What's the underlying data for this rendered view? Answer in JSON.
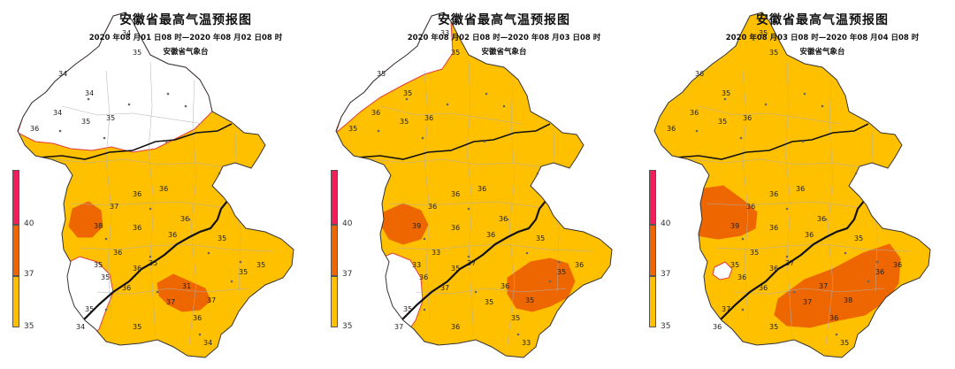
{
  "colors": {
    "band_35_37": "#FFC000",
    "band_37_40": "#EE6600",
    "band_40_plus": "#F01E5A",
    "below_35": "#FFFFFF",
    "boundary": "#333333",
    "river": "#111111",
    "contour_35": "#E03C3C"
  },
  "panels": [
    {
      "title": "安徽省最高气温预报图",
      "date": "2020 年08 月01 日08 时—2020 年08 月02 日08 时",
      "agency": "安徽省气象台",
      "legend": {
        "top": "40",
        "mid": "37",
        "bottom": "35"
      },
      "values": [
        "34",
        "35",
        "34",
        "34",
        "34",
        "35",
        "35",
        "36",
        "38",
        "36",
        "37",
        "36",
        "36",
        "36",
        "36",
        "35",
        "35",
        "36",
        "36",
        "35",
        "31",
        "37",
        "37",
        "36",
        "35",
        "35",
        "34",
        "36",
        "35",
        "35",
        "35",
        "34"
      ]
    },
    {
      "title": "安徽省最高气温预报图",
      "date": "2020 年08 月02 日08 时—2020 年08 月03 日08 时",
      "agency": "安徽省气象台",
      "legend": {
        "top": "40",
        "mid": "37",
        "bottom": "35"
      },
      "values": [
        "33",
        "35",
        "35",
        "35",
        "36",
        "35",
        "36",
        "35",
        "39",
        "36",
        "36",
        "36",
        "36",
        "36",
        "33",
        "33",
        "36",
        "35",
        "37",
        "37",
        "36",
        "35",
        "35",
        "35",
        "36",
        "35",
        "37",
        "36",
        "35",
        "35",
        "36",
        "33"
      ]
    },
    {
      "title": "安徽省最高气温预报图",
      "date": "2020 年08 月03 日08 时—2020 年08 月04 日08 时",
      "agency": "安徽省气象台",
      "legend": {
        "top": "40",
        "mid": "37",
        "bottom": "35"
      },
      "values": [
        "35",
        "35",
        "36",
        "35",
        "36",
        "35",
        "36",
        "36",
        "39",
        "36",
        "36",
        "36",
        "36",
        "36",
        "35",
        "35",
        "36",
        "36",
        "36",
        "37",
        "37",
        "37",
        "38",
        "36",
        "35",
        "37",
        "36",
        "36",
        "35",
        "36",
        "36",
        "35"
      ]
    }
  ]
}
